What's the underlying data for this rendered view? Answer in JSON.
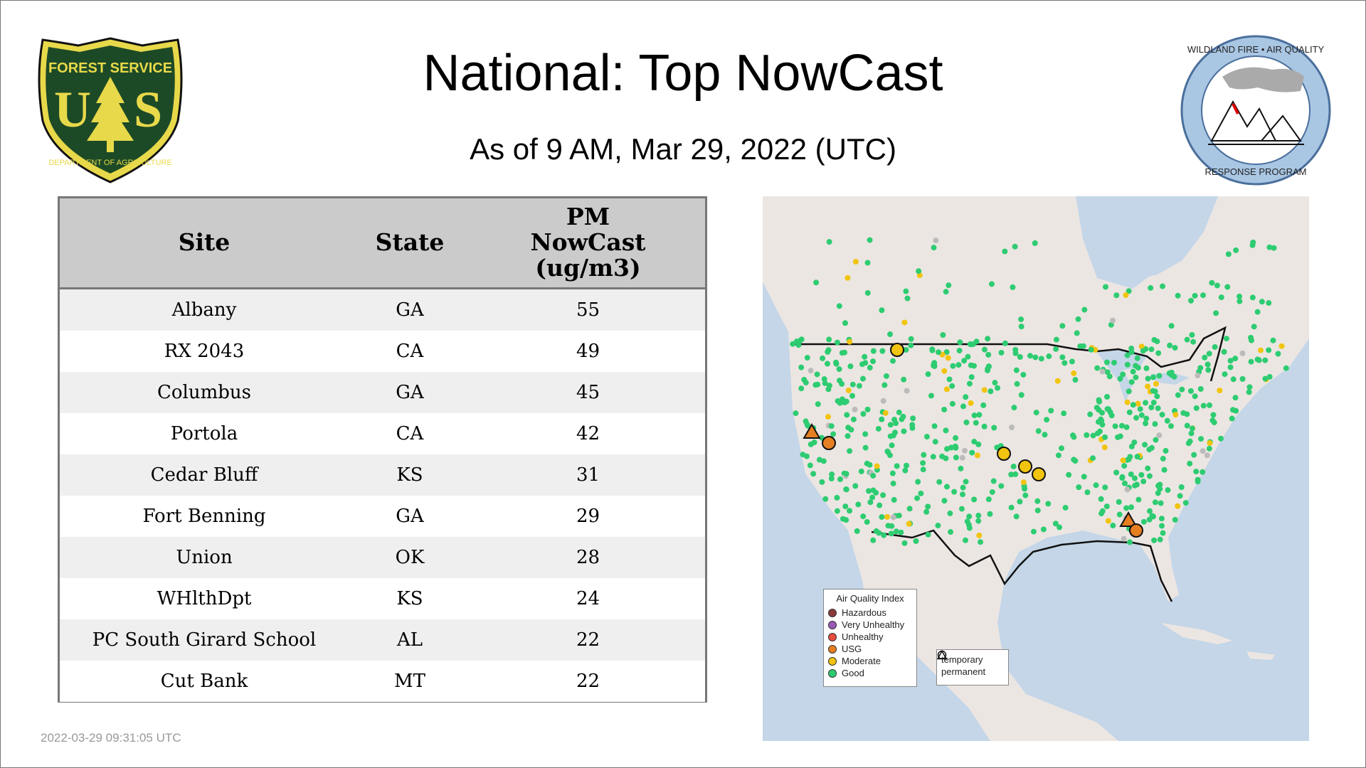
{
  "header": {
    "title": "National: Top NowCast",
    "subtitle": "As of  9 AM, Mar 29, 2022 (UTC)",
    "left_logo_text": "FOREST SERVICE U S DEPARTMENT OF AGRICULTURE",
    "right_logo_text": "WILDLAND FIRE • AIR QUALITY RESPONSE PROGRAM"
  },
  "table": {
    "columns": [
      "Site",
      "State",
      "PM NowCast (ug/m3)"
    ],
    "pm_header_lines": [
      "PM",
      "NowCast",
      "(ug/m3)"
    ],
    "rows": [
      {
        "site": "Albany",
        "state": "GA",
        "value": "55"
      },
      {
        "site": "RX 2043",
        "state": "CA",
        "value": "49"
      },
      {
        "site": "Columbus",
        "state": "GA",
        "value": "45"
      },
      {
        "site": "Portola",
        "state": "CA",
        "value": "42"
      },
      {
        "site": "Cedar Bluff",
        "state": "KS",
        "value": "31"
      },
      {
        "site": "Fort Benning",
        "state": "GA",
        "value": "29"
      },
      {
        "site": "Union",
        "state": "OK",
        "value": "28"
      },
      {
        "site": "WHlthDpt",
        "state": "KS",
        "value": "24"
      },
      {
        "site": "PC South Girard School",
        "state": "AL",
        "value": "22"
      },
      {
        "site": "Cut Bank",
        "state": "MT",
        "value": "22"
      }
    ]
  },
  "map": {
    "aqi_legend": {
      "title": "Air Quality Index",
      "items": [
        {
          "label": "Hazardous",
          "color": "#8b3a3a"
        },
        {
          "label": "Very Unhealthy",
          "color": "#9b59b6"
        },
        {
          "label": "Unhealthy",
          "color": "#e74c3c"
        },
        {
          "label": "USG",
          "color": "#e67e22"
        },
        {
          "label": "Moderate",
          "color": "#f1c40f"
        },
        {
          "label": "Good",
          "color": "#2ecc71"
        }
      ]
    },
    "shape_legend": [
      {
        "label": "temporary",
        "shape": "circle"
      },
      {
        "label": "permanent",
        "shape": "triangle"
      }
    ]
  },
  "footer": {
    "timestamp": "2022-03-29 09:31:05 UTC"
  }
}
